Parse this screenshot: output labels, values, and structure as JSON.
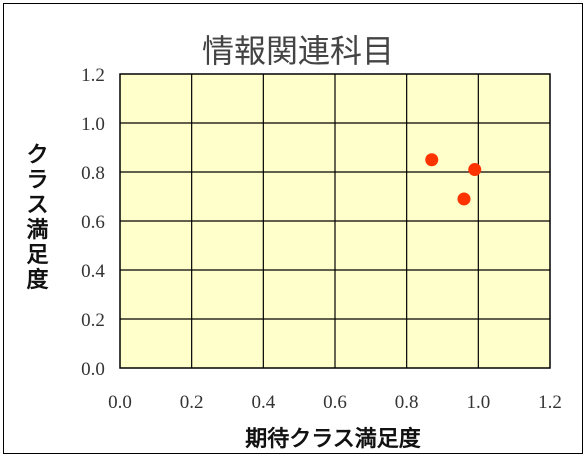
{
  "chart_data": {
    "type": "scatter",
    "title": "情報関連科目",
    "xlabel": "期待クラス満足度",
    "ylabel": "クラス満足度",
    "xlim": [
      0.0,
      1.2
    ],
    "ylim": [
      0.0,
      1.2
    ],
    "x_ticks": [
      "0.0",
      "0.2",
      "0.4",
      "0.6",
      "0.8",
      "1.0",
      "1.2"
    ],
    "y_ticks": [
      "0.0",
      "0.2",
      "0.4",
      "0.6",
      "0.8",
      "1.0",
      "1.2"
    ],
    "grid": true,
    "series": [
      {
        "points": [
          {
            "x": 0.87,
            "y": 0.85
          },
          {
            "x": 0.99,
            "y": 0.81
          },
          {
            "x": 0.96,
            "y": 0.69
          }
        ]
      }
    ],
    "colors": {
      "plot_background": "#ffffcc",
      "marker": "#ff3300",
      "gridline": "#000000"
    }
  }
}
